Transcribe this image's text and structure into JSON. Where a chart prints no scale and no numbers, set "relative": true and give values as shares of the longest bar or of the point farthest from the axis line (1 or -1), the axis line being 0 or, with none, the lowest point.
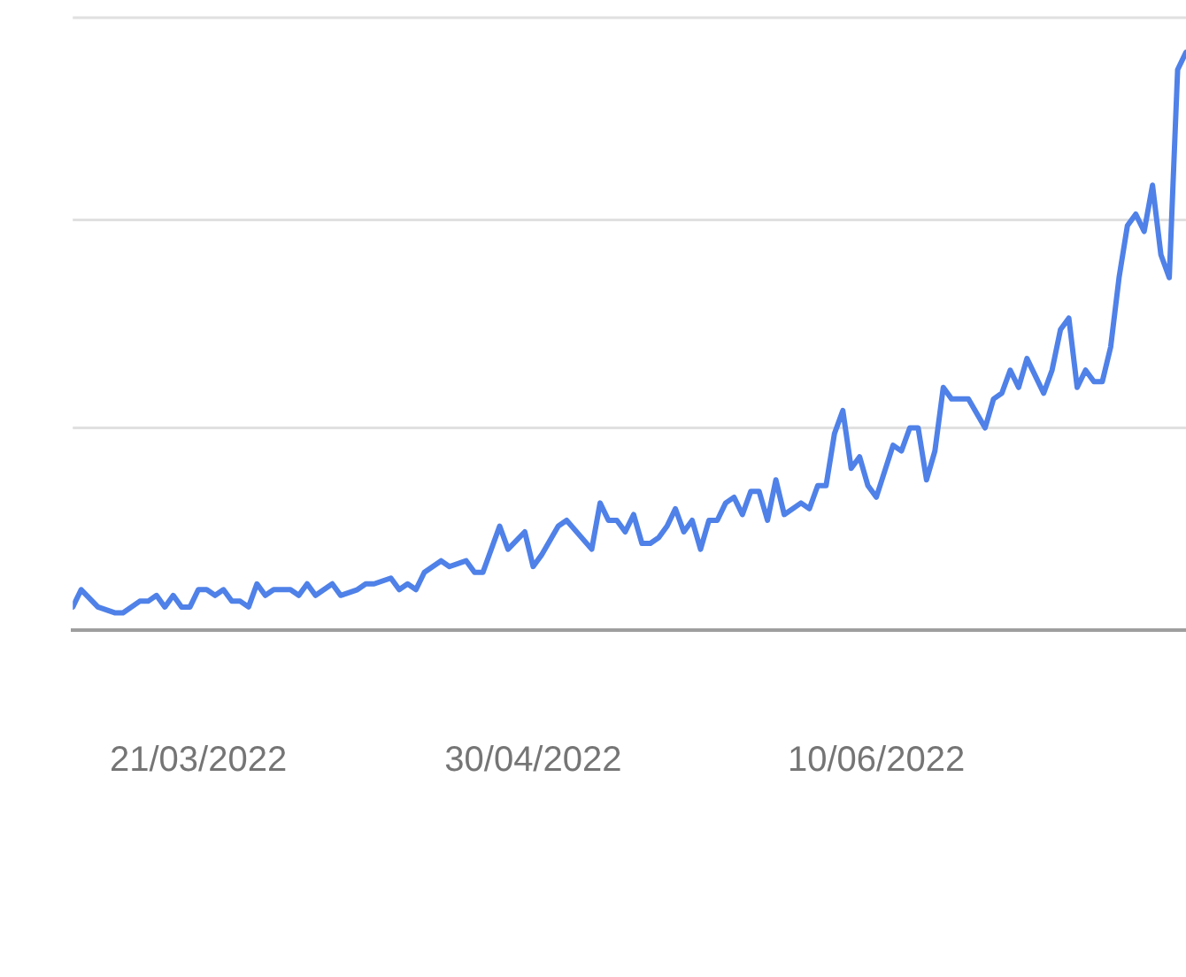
{
  "chart_data": {
    "type": "line",
    "relative": true,
    "color": "#4f81e8",
    "marker": "none",
    "line_style": "solid",
    "legend": false,
    "ref_lines": [
      {
        "axis": "y",
        "value": 0.35,
        "color": "#e0e0e0"
      },
      {
        "axis": "y",
        "value": 0.71,
        "color": "#e0e0e0"
      },
      {
        "axis": "y",
        "value": 1.06,
        "color": "#e0e0e0"
      }
    ],
    "xlim": [
      "2022-03-06",
      "2022-07-17"
    ],
    "xticks": [
      {
        "value": "2022-03-21",
        "label": "21/03/2022"
      },
      {
        "value": "2022-04-30",
        "label": "30/04/2022"
      },
      {
        "value": "2022-06-10",
        "label": "10/06/2022"
      }
    ],
    "x": [
      "2022-03-06",
      "2022-03-07",
      "2022-03-09",
      "2022-03-11",
      "2022-03-12",
      "2022-03-14",
      "2022-03-15",
      "2022-03-16",
      "2022-03-17",
      "2022-03-18",
      "2022-03-19",
      "2022-03-20",
      "2022-03-21",
      "2022-03-22",
      "2022-03-23",
      "2022-03-24",
      "2022-03-25",
      "2022-03-26",
      "2022-03-27",
      "2022-03-28",
      "2022-03-29",
      "2022-03-30",
      "2022-03-31",
      "2022-04-01",
      "2022-04-02",
      "2022-04-03",
      "2022-04-04",
      "2022-04-06",
      "2022-04-07",
      "2022-04-09",
      "2022-04-10",
      "2022-04-11",
      "2022-04-13",
      "2022-04-14",
      "2022-04-15",
      "2022-04-16",
      "2022-04-17",
      "2022-04-19",
      "2022-04-20",
      "2022-04-22",
      "2022-04-23",
      "2022-04-24",
      "2022-04-26",
      "2022-04-27",
      "2022-04-29",
      "2022-04-30",
      "2022-05-01",
      "2022-05-03",
      "2022-05-04",
      "2022-05-07",
      "2022-05-08",
      "2022-05-09",
      "2022-05-10",
      "2022-05-11",
      "2022-05-12",
      "2022-05-13",
      "2022-05-14",
      "2022-05-15",
      "2022-05-16",
      "2022-05-17",
      "2022-05-18",
      "2022-05-19",
      "2022-05-20",
      "2022-05-21",
      "2022-05-22",
      "2022-05-23",
      "2022-05-24",
      "2022-05-25",
      "2022-05-26",
      "2022-05-27",
      "2022-05-28",
      "2022-05-29",
      "2022-05-30",
      "2022-06-01",
      "2022-06-02",
      "2022-06-03",
      "2022-06-04",
      "2022-06-05",
      "2022-06-06",
      "2022-06-07",
      "2022-06-08",
      "2022-06-09",
      "2022-06-10",
      "2022-06-12",
      "2022-06-13",
      "2022-06-14",
      "2022-06-15",
      "2022-06-16",
      "2022-06-17",
      "2022-06-18",
      "2022-06-19",
      "2022-06-21",
      "2022-06-23",
      "2022-06-24",
      "2022-06-25",
      "2022-06-26",
      "2022-06-27",
      "2022-06-28",
      "2022-06-30",
      "2022-07-01",
      "2022-07-02",
      "2022-07-03",
      "2022-07-04",
      "2022-07-05",
      "2022-07-06",
      "2022-07-07",
      "2022-07-08",
      "2022-07-09",
      "2022-07-10",
      "2022-07-11",
      "2022-07-12",
      "2022-07-13",
      "2022-07-14",
      "2022-07-15",
      "2022-07-16",
      "2022-07-17"
    ],
    "values": [
      0.04,
      0.07,
      0.04,
      0.03,
      0.03,
      0.05,
      0.05,
      0.06,
      0.04,
      0.06,
      0.04,
      0.04,
      0.07,
      0.07,
      0.06,
      0.07,
      0.05,
      0.05,
      0.04,
      0.08,
      0.06,
      0.07,
      0.07,
      0.07,
      0.06,
      0.08,
      0.06,
      0.08,
      0.06,
      0.07,
      0.08,
      0.08,
      0.09,
      0.07,
      0.08,
      0.07,
      0.1,
      0.12,
      0.11,
      0.12,
      0.1,
      0.1,
      0.18,
      0.14,
      0.17,
      0.11,
      0.13,
      0.18,
      0.19,
      0.14,
      0.22,
      0.19,
      0.19,
      0.17,
      0.2,
      0.15,
      0.15,
      0.16,
      0.18,
      0.21,
      0.17,
      0.19,
      0.14,
      0.19,
      0.19,
      0.22,
      0.23,
      0.2,
      0.24,
      0.24,
      0.19,
      0.26,
      0.2,
      0.22,
      0.21,
      0.25,
      0.25,
      0.34,
      0.38,
      0.28,
      0.3,
      0.25,
      0.23,
      0.32,
      0.31,
      0.35,
      0.35,
      0.26,
      0.31,
      0.42,
      0.4,
      0.4,
      0.35,
      0.4,
      0.41,
      0.45,
      0.42,
      0.47,
      0.41,
      0.45,
      0.52,
      0.54,
      0.42,
      0.45,
      0.43,
      0.43,
      0.49,
      0.61,
      0.7,
      0.72,
      0.69,
      0.77,
      0.65,
      0.61,
      0.97,
      1
    ]
  }
}
